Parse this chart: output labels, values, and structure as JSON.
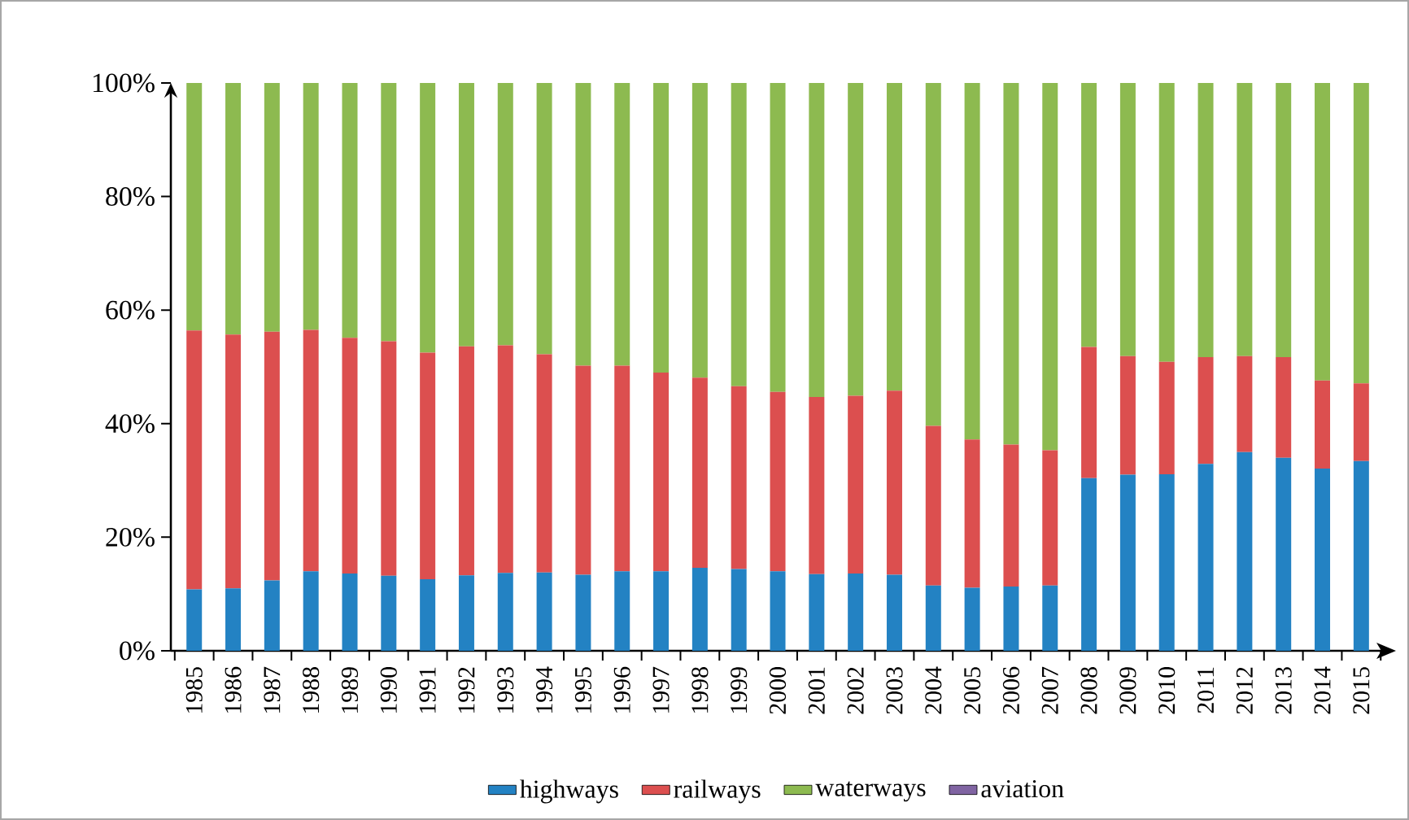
{
  "chart_data": {
    "type": "bar",
    "stacked": true,
    "categories": [
      "1985",
      "1986",
      "1987",
      "1988",
      "1989",
      "1990",
      "1991",
      "1992",
      "1993",
      "1994",
      "1995",
      "1996",
      "1997",
      "1998",
      "1999",
      "2000",
      "2001",
      "2002",
      "2003",
      "2004",
      "2005",
      "2006",
      "2007",
      "2008",
      "2009",
      "2010",
      "2011",
      "2012",
      "2013",
      "2014",
      "2015"
    ],
    "series": [
      {
        "name": "highways",
        "color": "#2382c3",
        "values": [
          10.8,
          11.0,
          12.4,
          14.0,
          13.6,
          13.2,
          12.6,
          13.3,
          13.7,
          13.8,
          13.4,
          14.0,
          14.0,
          14.6,
          14.4,
          14.0,
          13.5,
          13.6,
          13.4,
          11.5,
          11.1,
          11.3,
          11.5,
          30.4,
          31.0,
          31.1,
          32.9,
          35.0,
          34.0,
          32.1,
          33.4
        ]
      },
      {
        "name": "railways",
        "color": "#dc4f4f",
        "values": [
          45.6,
          44.7,
          43.8,
          42.5,
          41.5,
          41.3,
          39.9,
          40.3,
          40.1,
          38.4,
          36.8,
          36.2,
          35.0,
          33.5,
          32.2,
          31.6,
          31.2,
          31.3,
          32.4,
          28.1,
          26.1,
          25.0,
          23.8,
          23.1,
          20.9,
          19.8,
          18.8,
          16.9,
          17.7,
          15.5,
          13.7
        ]
      },
      {
        "name": "waterways",
        "color": "#8dba50",
        "values": [
          43.6,
          44.3,
          43.8,
          43.5,
          44.9,
          45.5,
          47.5,
          46.4,
          46.2,
          47.8,
          49.8,
          49.8,
          51.0,
          51.9,
          53.4,
          54.4,
          55.3,
          55.1,
          54.2,
          60.4,
          62.8,
          63.7,
          64.7,
          46.5,
          48.1,
          49.1,
          48.3,
          48.1,
          48.3,
          52.4,
          52.9
        ]
      },
      {
        "name": "aviation",
        "color": "#8064a2",
        "values": [
          0,
          0,
          0,
          0,
          0,
          0,
          0,
          0,
          0,
          0,
          0,
          0,
          0,
          0,
          0,
          0,
          0,
          0,
          0,
          0,
          0,
          0,
          0,
          0,
          0,
          0,
          0,
          0,
          0,
          0,
          0
        ]
      }
    ],
    "ylim": [
      0,
      100
    ],
    "yticks": [
      {
        "value": 0,
        "label": "0%"
      },
      {
        "value": 20,
        "label": "20%"
      },
      {
        "value": 40,
        "label": "40%"
      },
      {
        "value": 60,
        "label": "60%"
      },
      {
        "value": 80,
        "label": "80%"
      },
      {
        "value": 100,
        "label": "100%"
      }
    ],
    "legend": "bottom"
  }
}
